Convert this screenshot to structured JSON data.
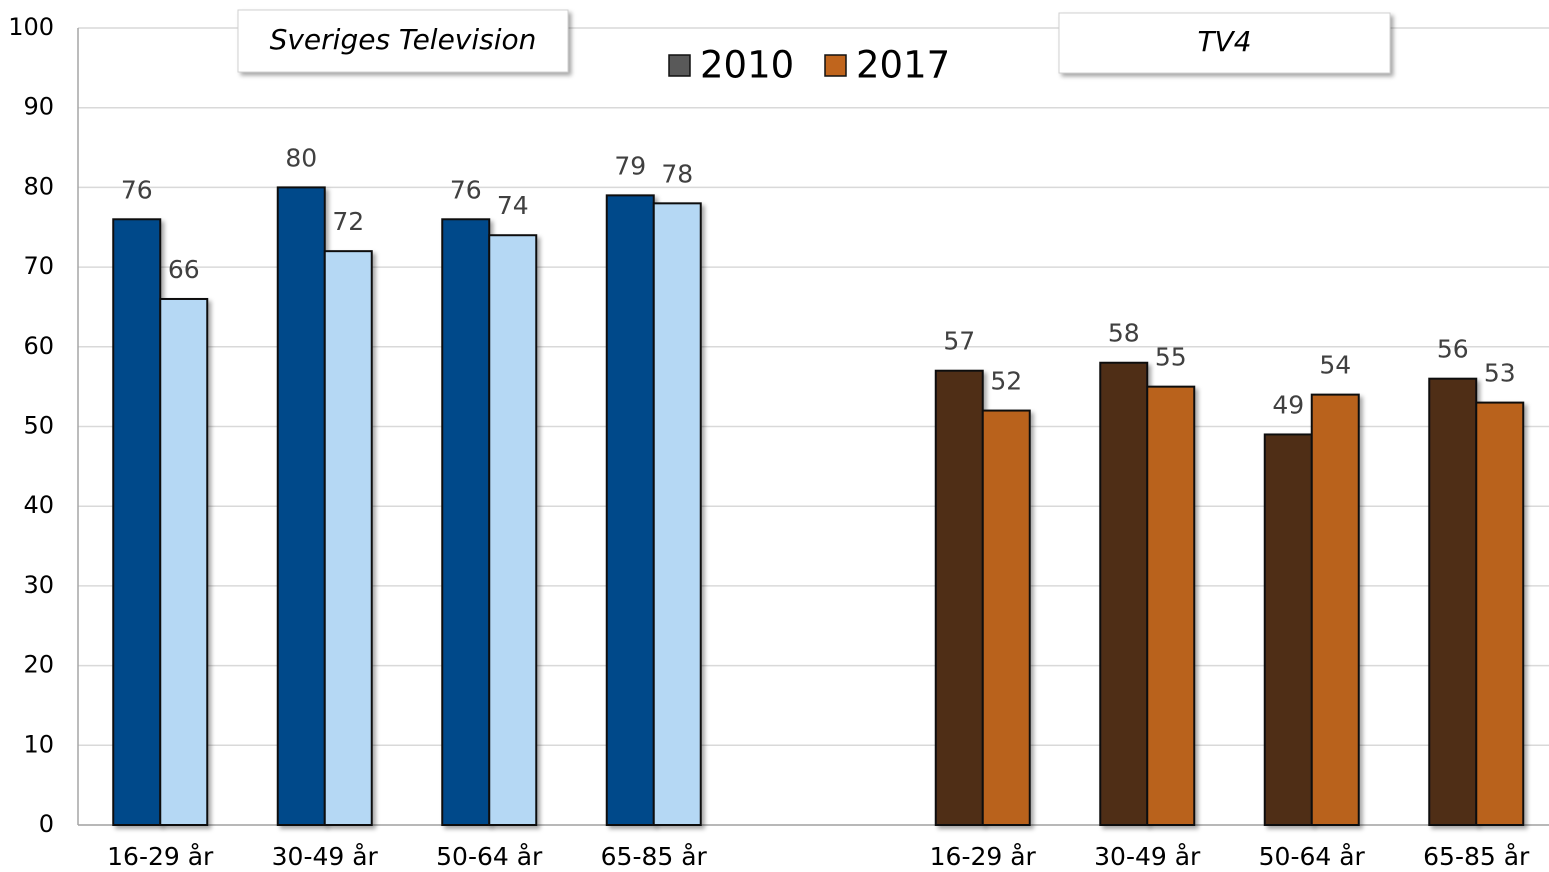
{
  "chart_data": {
    "type": "bar",
    "categories": [
      "16-29 år",
      "30-49 år",
      "50-64 år",
      "65-85 år",
      null,
      "16-29 år",
      "30-49 år",
      "50-64 år",
      "65-85 år"
    ],
    "series": [
      {
        "name": "2010",
        "color": "#595959",
        "colors": [
          "#03498a",
          "#03498a",
          "#03498a",
          "#03498a",
          null,
          "#4f2f14",
          "#4f2f14",
          "#4f2f14",
          "#4f2f14"
        ],
        "values": [
          76,
          80,
          76,
          79,
          null,
          57,
          58,
          49,
          56
        ]
      },
      {
        "name": "2017",
        "color": "#c0651d",
        "colors": [
          "#b5d8f4",
          "#b5d8f4",
          "#b5d8f4",
          "#b5d8f4",
          null,
          "#b9621a",
          "#b9621a",
          "#b9621a",
          "#b9621a"
        ],
        "values": [
          66,
          72,
          74,
          78,
          null,
          52,
          55,
          54,
          53
        ]
      }
    ],
    "annotations": [
      {
        "text": "Sveriges Television"
      },
      {
        "text": "TV4"
      }
    ],
    "ylim": [
      0,
      100
    ],
    "yticks": [
      0,
      10,
      20,
      30,
      40,
      50,
      60,
      70,
      80,
      90,
      100
    ],
    "grid": true,
    "legend": "top"
  }
}
